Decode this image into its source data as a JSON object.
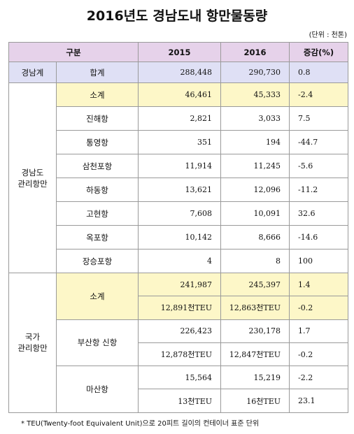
{
  "title": "2016년도 경남도내 항만물동량",
  "unit": "(단위 : 천톤)",
  "table": {
    "header": [
      "구분",
      "2015",
      "2016",
      "증감(%)"
    ],
    "groups": [
      {
        "label": [
          "경남계"
        ],
        "rows": [
          {
            "name": "합계",
            "lines": [
              [
                "288,448",
                "290,730",
                "0.8"
              ]
            ]
          }
        ]
      },
      {
        "label": [
          "경남도",
          "관리항만"
        ],
        "rows": [
          {
            "name": "소계",
            "lines": [
              [
                "46,461",
                "45,333",
                "-2.4"
              ]
            ]
          },
          {
            "name": "진해항",
            "lines": [
              [
                "2,821",
                "3,033",
                "7.5"
              ]
            ]
          },
          {
            "name": "통영항",
            "lines": [
              [
                "351",
                "194",
                "-44.7"
              ]
            ]
          },
          {
            "name": "삼천포항",
            "lines": [
              [
                "11,914",
                "11,245",
                "-5.6"
              ]
            ]
          },
          {
            "name": "하동항",
            "lines": [
              [
                "13,621",
                "12,096",
                "-11.2"
              ]
            ]
          },
          {
            "name": "고현항",
            "lines": [
              [
                "7,608",
                "10,091",
                "32.6"
              ]
            ]
          },
          {
            "name": "옥포항",
            "lines": [
              [
                "10,142",
                "8,666",
                "-14.6"
              ]
            ]
          },
          {
            "name": "장승포항",
            "lines": [
              [
                "4",
                "8",
                "100"
              ]
            ]
          }
        ]
      },
      {
        "label": [
          "국가",
          "관리항만"
        ],
        "rows": [
          {
            "name": "소계",
            "lines": [
              [
                "241,987",
                "245,397",
                "1.4"
              ],
              [
                "12,891천TEU",
                "12,863천TEU",
                "-0.2"
              ]
            ]
          },
          {
            "name": "부산항 신항",
            "lines": [
              [
                "226,423",
                "230,178",
                "1.7"
              ],
              [
                "12,878천TEU",
                "12,847천TEU",
                "-0.2"
              ]
            ]
          },
          {
            "name": "마산항",
            "lines": [
              [
                "15,564",
                "15,219",
                "-2.2"
              ],
              [
                "13천TEU",
                "16천TEU",
                "23.1"
              ]
            ]
          }
        ]
      }
    ]
  },
  "footnote": "* TEU(Twenty-foot Equivalent Unit)으로 20피트 길이의 컨테이너 표준 단위"
}
